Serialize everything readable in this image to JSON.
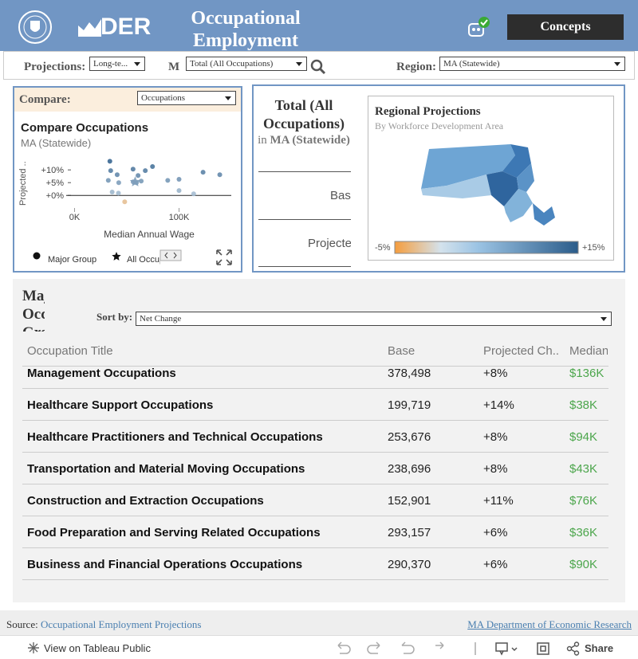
{
  "header": {
    "logo_text": "DER",
    "title": "Occupational Employment",
    "button": "Concepts"
  },
  "filters": {
    "projections_label": "Projections:",
    "projections_value": "Long-te...",
    "measure_label": "M",
    "measure_value": "Total (All Occupations)",
    "region_label": "Region:",
    "region_value": "MA (Statewide)"
  },
  "compare_panel": {
    "label": "Compare:",
    "value": "Occupations",
    "chart": {
      "type": "scatter",
      "title": "Compare Occupations",
      "subtitle": "MA (Statewide)",
      "x_label": "Median Annual Wage",
      "y_label": "Projected ..",
      "xlim": [
        -8000,
        150000
      ],
      "ylim": [
        -4,
        16
      ],
      "xticks": [
        {
          "value": 0,
          "label": "0K"
        },
        {
          "value": 100000,
          "label": "100K"
        }
      ],
      "yticks": [
        {
          "value": 0,
          "label": "+0%"
        },
        {
          "value": 5,
          "label": "+5%"
        },
        {
          "value": 10,
          "label": "+10%"
        }
      ],
      "series": [
        {
          "name": "Major Group",
          "marker": "circle",
          "x": [
            33800,
            34600,
            40800,
            32300,
            56000,
            67700,
            74600,
            60800,
            56100,
            59200,
            63800,
            42300,
            89200,
            100000,
            123000,
            139000,
            36000,
            42000,
            100000,
            114000,
            48000
          ],
          "values": [
            13.4,
            9.7,
            8.1,
            5.9,
            10.3,
            9.7,
            11.3,
            7.8,
            5.3,
            5.0,
            5.6,
            5.0,
            5.9,
            6.3,
            9.1,
            8.1,
            1.3,
            0.9,
            1.9,
            0.6,
            -2.5
          ]
        },
        {
          "name": "All Occupations",
          "marker": "star",
          "x": [
            58000
          ],
          "values": [
            5.3
          ]
        }
      ]
    }
  },
  "summary_panel": {
    "occupation": "Total (All Occupations)",
    "in_word": "in",
    "region": "MA (Statewide)",
    "row_1": "Base",
    "row_2": "Projected"
  },
  "regional_map": {
    "title": "Regional Projections",
    "subtitle": "By Workforce Development Area",
    "color_scale": {
      "min": {
        "value": -5,
        "label": "-5%"
      },
      "max": {
        "value": 15,
        "label": "+15%"
      }
    }
  },
  "table_section": {
    "title": "Major Occupation Groups",
    "sort_label": "Sort by:",
    "sort_value": "Net Change",
    "columns": [
      "Occupation Title",
      "Base",
      "Projected Ch..",
      "Median"
    ],
    "rows": [
      [
        "Management Occupations",
        "378,498",
        "+8%",
        "$136K"
      ],
      [
        "Healthcare Support Occupations",
        "199,719",
        "+14%",
        "$38K"
      ],
      [
        "Healthcare Practitioners and Technical Occupations",
        "253,676",
        "+8%",
        "$94K"
      ],
      [
        "Transportation and Material Moving Occupations",
        "238,696",
        "+8%",
        "$43K"
      ],
      [
        "Construction and Extraction Occupations",
        "152,901",
        "+11%",
        "$76K"
      ],
      [
        "Food Preparation and Serving Related Occupations",
        "293,157",
        "+6%",
        "$36K"
      ],
      [
        "Business and Financial Operations Occupations",
        "290,370",
        "+6%",
        "$90K"
      ]
    ]
  },
  "footer": {
    "source_label": "Source:",
    "source_link": "Occupational Employment Projections",
    "agency_link": "MA Department of Economic Research"
  },
  "toolbar": {
    "view_link": "View on Tableau Public",
    "share": "Share"
  }
}
